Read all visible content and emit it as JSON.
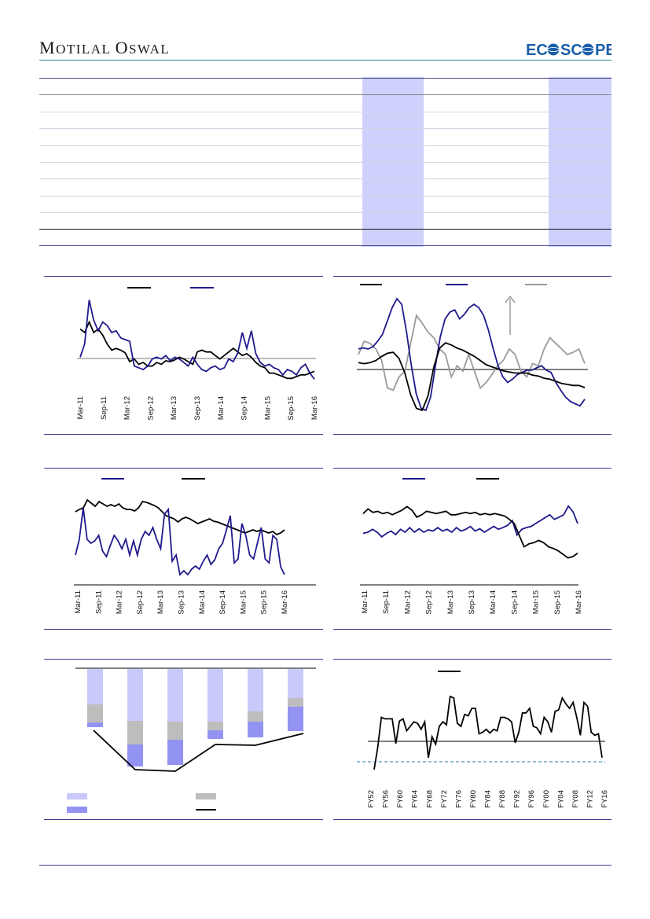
{
  "header": {
    "brand_first_initial": "M",
    "brand_first_rest": "OTILAL",
    "brand_second_initial": "O",
    "brand_second_rest": "SWAL",
    "logo_text": "EcoScope",
    "logo_text_left": "EC",
    "logo_text_right": "SC",
    "logo_text_end": "PE"
  },
  "colors": {
    "navy": "#1f1a8c",
    "black": "#000000",
    "grey": "#9a9a9a",
    "highlight": "#cfd0fb",
    "teal_rule": "#2d8b8d",
    "bar_light": "#c9c9fb",
    "bar_grey": "#bdbdbd",
    "bar_mid": "#9393f3"
  },
  "charts": {
    "c1": {
      "ticks": [
        "Mar-11",
        "Sep-11",
        "Mar-12",
        "Sep-12",
        "Mar-13",
        "Sep-13",
        "Mar-14",
        "Sep-14",
        "Mar-15",
        "Sep-15",
        "Mar-16"
      ],
      "series_black": [
        0.62,
        0.58,
        0.7,
        0.58,
        0.62,
        0.55,
        0.45,
        0.38,
        0.4,
        0.38,
        0.35,
        0.25,
        0.28,
        0.22,
        0.24,
        0.2,
        0.2,
        0.24,
        0.22,
        0.26,
        0.25,
        0.27,
        0.3,
        0.28,
        0.25,
        0.22,
        0.36,
        0.38,
        0.36,
        0.36,
        0.32,
        0.28,
        0.32,
        0.36,
        0.4,
        0.36,
        0.32,
        0.34,
        0.3,
        0.24,
        0.2,
        0.18,
        0.12,
        0.12,
        0.1,
        0.08,
        0.06,
        0.06,
        0.08,
        0.1,
        0.1,
        0.12,
        0.14
      ],
      "series_navy": [
        0.3,
        0.45,
        0.95,
        0.72,
        0.6,
        0.7,
        0.66,
        0.58,
        0.6,
        0.52,
        0.5,
        0.48,
        0.2,
        0.18,
        0.16,
        0.2,
        0.28,
        0.3,
        0.28,
        0.32,
        0.26,
        0.3,
        0.28,
        0.24,
        0.2,
        0.3,
        0.22,
        0.16,
        0.14,
        0.18,
        0.2,
        0.16,
        0.18,
        0.28,
        0.25,
        0.35,
        0.58,
        0.4,
        0.6,
        0.34,
        0.24,
        0.2,
        0.22,
        0.18,
        0.16,
        0.1,
        0.16,
        0.14,
        0.1,
        0.18,
        0.22,
        0.12,
        0.05
      ]
    },
    "c2": {
      "series_navy": [
        0.55,
        0.56,
        0.55,
        0.57,
        0.62,
        0.68,
        0.8,
        0.92,
        1.0,
        0.95,
        0.7,
        0.4,
        0.15,
        0.02,
        0.0,
        0.12,
        0.4,
        0.66,
        0.82,
        0.88,
        0.9,
        0.82,
        0.86,
        0.92,
        0.95,
        0.92,
        0.85,
        0.72,
        0.55,
        0.4,
        0.3,
        0.25,
        0.28,
        0.32,
        0.34,
        0.36,
        0.36,
        0.38,
        0.4,
        0.36,
        0.34,
        0.25,
        0.18,
        0.12,
        0.08,
        0.06,
        0.04,
        0.1
      ],
      "series_black": [
        0.46,
        0.45,
        0.46,
        0.48,
        0.52,
        0.55,
        0.56,
        0.5,
        0.36,
        0.15,
        0.02,
        0.0,
        0.14,
        0.42,
        0.6,
        0.65,
        0.63,
        0.6,
        0.58,
        0.55,
        0.52,
        0.48,
        0.44,
        0.42,
        0.4,
        0.38,
        0.37,
        0.36,
        0.36,
        0.36,
        0.34,
        0.33,
        0.31,
        0.3,
        0.28,
        0.26,
        0.25,
        0.24,
        0.24,
        0.22
      ],
      "series_grey": [
        0.5,
        0.62,
        0.6,
        0.55,
        0.45,
        0.2,
        0.18,
        0.3,
        0.35,
        0.6,
        0.85,
        0.78,
        0.7,
        0.65,
        0.55,
        0.5,
        0.3,
        0.4,
        0.35,
        0.5,
        0.35,
        0.2,
        0.25,
        0.32,
        0.4,
        0.45,
        0.55,
        0.5,
        0.35,
        0.3,
        0.42,
        0.4,
        0.55,
        0.65,
        0.6,
        0.55,
        0.5,
        0.52,
        0.55,
        0.42
      ]
    },
    "c3": {
      "ticks": [
        "Mar-11",
        "Sep-11",
        "Mar-12",
        "Sep-12",
        "Mar-13",
        "Sep-13",
        "Mar-14",
        "Sep-14",
        "Mar-15",
        "Sep-15",
        "Mar-16"
      ],
      "series_black": [
        0.85,
        0.88,
        0.9,
        1.0,
        0.96,
        0.92,
        0.98,
        0.95,
        0.92,
        0.94,
        0.92,
        0.95,
        0.9,
        0.88,
        0.88,
        0.86,
        0.9,
        0.98,
        0.97,
        0.95,
        0.93,
        0.9,
        0.85,
        0.8,
        0.78,
        0.76,
        0.72,
        0.76,
        0.78,
        0.76,
        0.73,
        0.7,
        0.72,
        0.74,
        0.76,
        0.73,
        0.72,
        0.7,
        0.68,
        0.66,
        0.64,
        0.62,
        0.6,
        0.58,
        0.6,
        0.62,
        0.6,
        0.62,
        0.6,
        0.58,
        0.6,
        0.56,
        0.58,
        0.62
      ],
      "series_navy": [
        0.3,
        0.5,
        0.9,
        0.5,
        0.45,
        0.48,
        0.55,
        0.35,
        0.28,
        0.42,
        0.55,
        0.48,
        0.38,
        0.5,
        0.3,
        0.48,
        0.3,
        0.5,
        0.6,
        0.55,
        0.65,
        0.5,
        0.38,
        0.82,
        0.88,
        0.22,
        0.3,
        0.05,
        0.1,
        0.05,
        0.12,
        0.16,
        0.12,
        0.22,
        0.3,
        0.18,
        0.24,
        0.38,
        0.45,
        0.62,
        0.8,
        0.2,
        0.25,
        0.7,
        0.55,
        0.3,
        0.25,
        0.45,
        0.65,
        0.25,
        0.2,
        0.55,
        0.5,
        0.15,
        0.05
      ]
    },
    "c4": {
      "ticks": [
        "Mar-11",
        "Sep-11",
        "Mar-12",
        "Sep-12",
        "Mar-13",
        "Sep-13",
        "Mar-14",
        "Sep-14",
        "Mar-15",
        "Sep-15",
        "Mar-16"
      ],
      "series_black": [
        0.82,
        0.9,
        0.84,
        0.86,
        0.82,
        0.84,
        0.8,
        0.84,
        0.88,
        0.94,
        0.88,
        0.76,
        0.8,
        0.86,
        0.84,
        0.82,
        0.84,
        0.86,
        0.8,
        0.8,
        0.82,
        0.84,
        0.82,
        0.84,
        0.8,
        0.82,
        0.8,
        0.82,
        0.8,
        0.78,
        0.72,
        0.65,
        0.45,
        0.25,
        0.3,
        0.32,
        0.36,
        0.32,
        0.25,
        0.22,
        0.18,
        0.12,
        0.06,
        0.08,
        0.14
      ],
      "series_navy": [
        0.48,
        0.5,
        0.55,
        0.5,
        0.42,
        0.48,
        0.52,
        0.46,
        0.55,
        0.5,
        0.58,
        0.5,
        0.56,
        0.5,
        0.54,
        0.52,
        0.58,
        0.52,
        0.55,
        0.5,
        0.58,
        0.52,
        0.55,
        0.6,
        0.52,
        0.56,
        0.5,
        0.55,
        0.6,
        0.55,
        0.58,
        0.62,
        0.7,
        0.45,
        0.55,
        0.58,
        0.6,
        0.65,
        0.7,
        0.75,
        0.8,
        0.72,
        0.76,
        0.8,
        0.95,
        0.85,
        0.65
      ]
    },
    "c5": {
      "bars": [
        {
          "light": 0.45,
          "grey": 0.23,
          "mid": 0.06
        },
        {
          "light": 0.66,
          "grey": 0.3,
          "mid": 0.28
        },
        {
          "light": 0.67,
          "grey": 0.23,
          "mid": 0.32
        },
        {
          "light": 0.67,
          "grey": 0.11,
          "mid": 0.11
        },
        {
          "light": 0.54,
          "grey": 0.13,
          "mid": 0.2
        },
        {
          "light": 0.37,
          "grey": 0.11,
          "mid": 0.31
        }
      ],
      "line": [
        0.78,
        1.28,
        1.3,
        0.96,
        0.97,
        0.82
      ]
    },
    "c6": {
      "ticks": [
        "FY52",
        "FY56",
        "FY60",
        "FY64",
        "FY68",
        "FY72",
        "FY76",
        "FY80",
        "FY84",
        "FY88",
        "FY92",
        "FY96",
        "FY00",
        "FY04",
        "FY08",
        "FY12",
        "FY16"
      ],
      "series_black": [
        0.0,
        0.3,
        0.7,
        0.68,
        0.68,
        0.68,
        0.35,
        0.65,
        0.68,
        0.52,
        0.58,
        0.64,
        0.62,
        0.54,
        0.64,
        0.16,
        0.44,
        0.34,
        0.58,
        0.64,
        0.6,
        0.98,
        0.96,
        0.62,
        0.58,
        0.74,
        0.72,
        0.82,
        0.82,
        0.48,
        0.5,
        0.54,
        0.49,
        0.54,
        0.52,
        0.7,
        0.7,
        0.68,
        0.64,
        0.36,
        0.5,
        0.76,
        0.76,
        0.82,
        0.58,
        0.56,
        0.48,
        0.7,
        0.64,
        0.5,
        0.78,
        0.8,
        0.96,
        0.88,
        0.82,
        0.9,
        0.7,
        0.46,
        0.9,
        0.85,
        0.5,
        0.46,
        0.48,
        0.16
      ]
    }
  }
}
